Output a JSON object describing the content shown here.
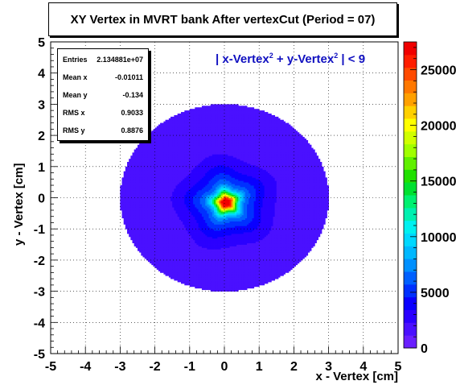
{
  "chart_data": {
    "type": "heatmap",
    "title": "XY Vertex in MVRT bank After vertexCut (Period = 07)",
    "xlabel": "x - Vertex [cm]",
    "ylabel": "y - Vertex [cm]",
    "xlim": [
      -5,
      5
    ],
    "ylim": [
      -5,
      5
    ],
    "x_ticks": [
      "-5",
      "-4",
      "-3",
      "-2",
      "-1",
      "0",
      "1",
      "2",
      "3",
      "4",
      "5"
    ],
    "y_ticks": [
      "-5",
      "-4",
      "-3",
      "-2",
      "-1",
      "0",
      "1",
      "2",
      "3",
      "4",
      "5"
    ],
    "z_range": [
      0,
      27500
    ],
    "z_ticks": [
      "0",
      "5000",
      "10000",
      "15000",
      "20000",
      "25000"
    ],
    "grid": true,
    "annotation": {
      "parts": [
        "| x-Vertex",
        "2",
        " + y-Vertex",
        "2",
        " | < 9"
      ],
      "color": "#1010c0"
    },
    "cut_radius": 3,
    "peak": {
      "x": 0.05,
      "y": -0.15,
      "value": 27000
    },
    "stats": {
      "rows": [
        {
          "label": "Entries",
          "value": "2.134881e+07"
        },
        {
          "label": "Mean x",
          "value": "-0.01011"
        },
        {
          "label": "Mean y",
          "value": "-0.134"
        },
        {
          "label": "RMS x",
          "value": "0.9033"
        },
        {
          "label": "RMS y",
          "value": "0.8876"
        }
      ]
    },
    "palette": [
      "#6a1fff",
      "#4a10ff",
      "#2b00ff",
      "#0a00ff",
      "#0030ff",
      "#0060ff",
      "#0090ff",
      "#00b8ff",
      "#00d8ff",
      "#00f0f0",
      "#00f0b0",
      "#00f070",
      "#00e030",
      "#20e000",
      "#60f000",
      "#a0ff00",
      "#d0ff00",
      "#ffff00",
      "#ffd000",
      "#ffa000",
      "#ff7800",
      "#ff4a00",
      "#ff1e00",
      "#f00000"
    ]
  }
}
